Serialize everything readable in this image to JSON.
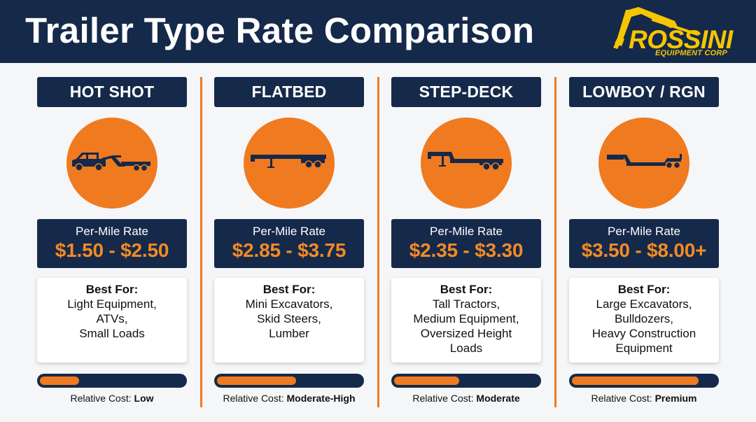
{
  "page": {
    "title": "Trailer Type Rate Comparison"
  },
  "logo": {
    "name": "ROSSINI",
    "subtitle": "EQUIPMENT CORP"
  },
  "colors": {
    "navy": "#15294a",
    "orange": "#f07a1f",
    "rate_orange": "#f38a25",
    "logo_yellow": "#f6c500"
  },
  "trailers": [
    {
      "name": "HOT SHOT",
      "icon": "hotshot-trailer-icon",
      "rate_label": "Per-Mile Rate",
      "rate": "$1.50 - $2.50",
      "best_for_title": "Best For:",
      "best_for": [
        "Light Equipment,",
        "ATVs,",
        "Small Loads"
      ],
      "relative_cost_label": "Relative Cost:",
      "relative_cost": "Low",
      "cost_level": 0.27
    },
    {
      "name": "FLATBED",
      "icon": "flatbed-trailer-icon",
      "rate_label": "Per-Mile Rate",
      "rate": "$2.85 - $3.75",
      "best_for_title": "Best For:",
      "best_for": [
        "Mini Excavators,",
        "Skid Steers,",
        "Lumber"
      ],
      "relative_cost_label": "Relative Cost:",
      "relative_cost": "Moderate-High",
      "cost_level": 0.55
    },
    {
      "name": "STEP-DECK",
      "icon": "step-deck-trailer-icon",
      "rate_label": "Per-Mile Rate",
      "rate": "$2.35 - $3.30",
      "best_for_title": "Best For:",
      "best_for": [
        "Tall Tractors,",
        "Medium Equipment,",
        "Oversized Height",
        "Loads"
      ],
      "relative_cost_label": "Relative Cost:",
      "relative_cost": "Moderate",
      "cost_level": 0.45
    },
    {
      "name": "LOWBOY / RGN",
      "icon": "lowboy-trailer-icon",
      "rate_label": "Per-Mile Rate",
      "rate": "$3.50 - $8.00+",
      "best_for_title": "Best For:",
      "best_for": [
        "Large Excavators,",
        "Bulldozers,",
        "Heavy Construction",
        "Equipment"
      ],
      "relative_cost_label": "Relative Cost:",
      "relative_cost": "Premium",
      "cost_level": 0.88
    }
  ]
}
